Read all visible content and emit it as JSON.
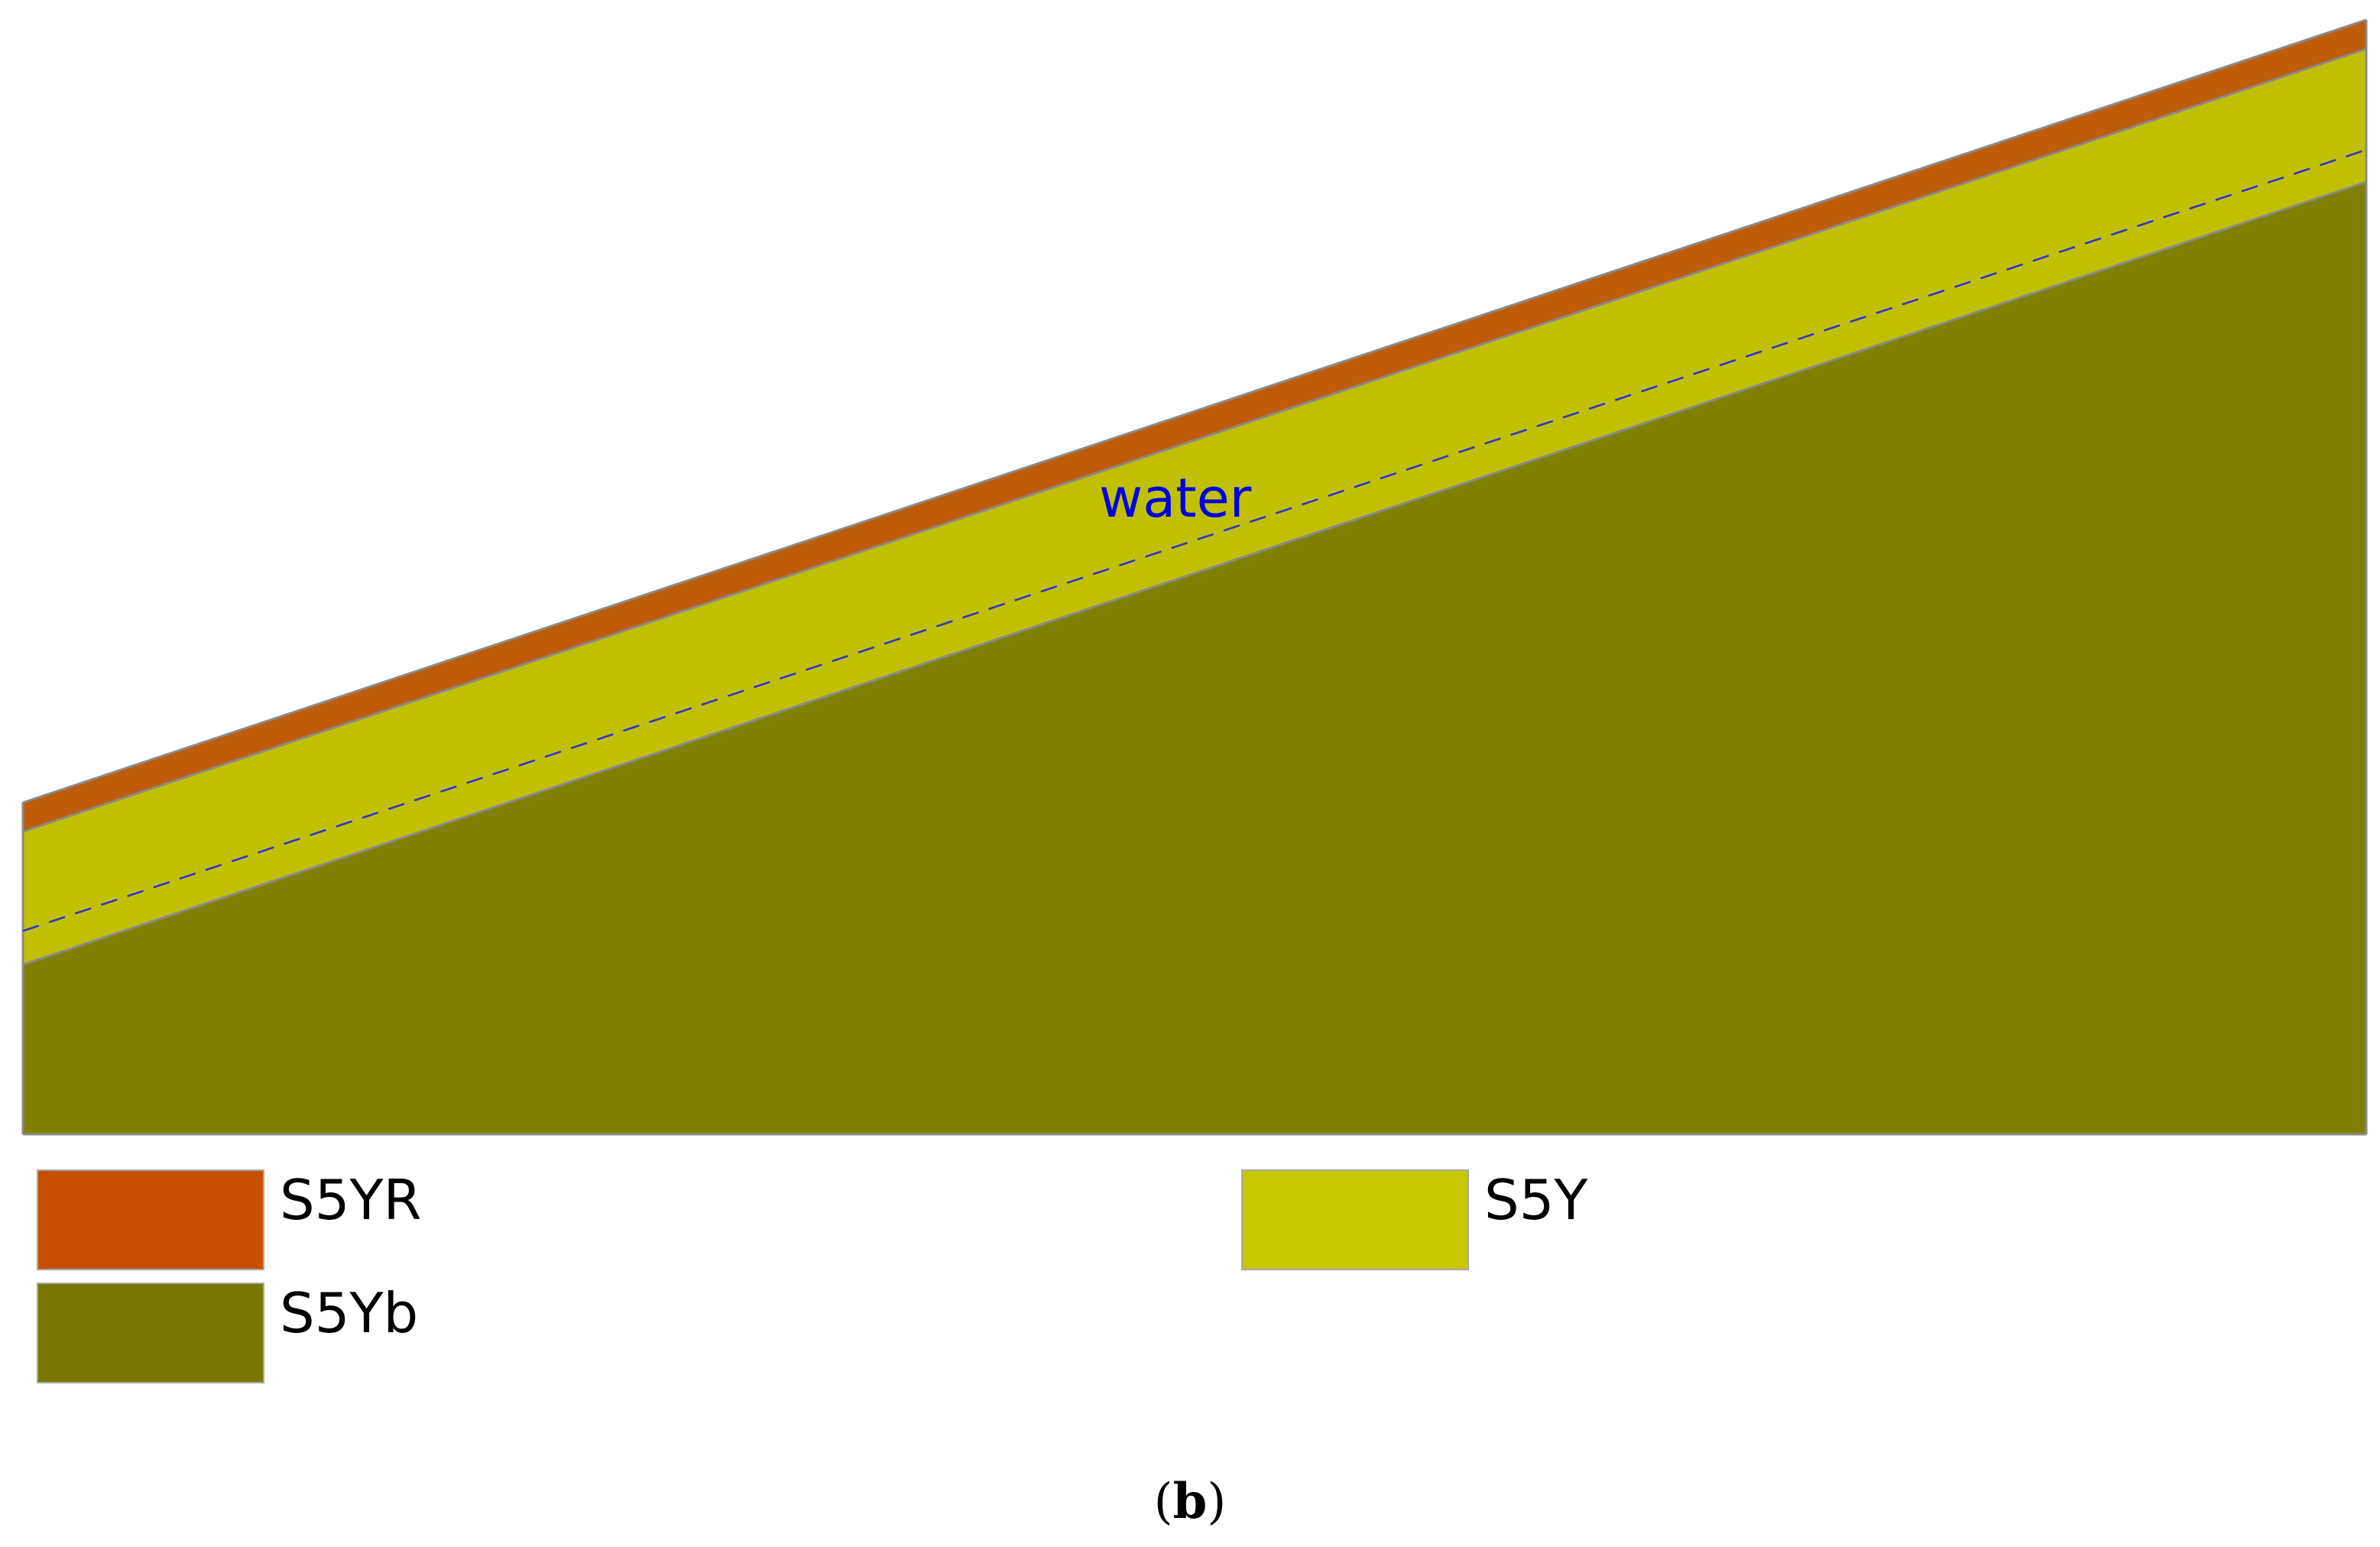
{
  "diagram": {
    "water_label": "water",
    "colors": {
      "s5yr": "#c05c08",
      "s5y": "#c0c000",
      "s5yb": "#808000",
      "boundary": "#8a8a8a",
      "water_line": "#2e2edb",
      "water_text": "#0000e0"
    }
  },
  "legend": {
    "items": [
      {
        "label": "S5YR",
        "color": "#c84f00"
      },
      {
        "label": "S5Y",
        "color": "#c8c800"
      },
      {
        "label": "S5Yb",
        "color": "#787800"
      }
    ]
  },
  "caption": {
    "open": "(",
    "letter": "b",
    "close": ")"
  }
}
